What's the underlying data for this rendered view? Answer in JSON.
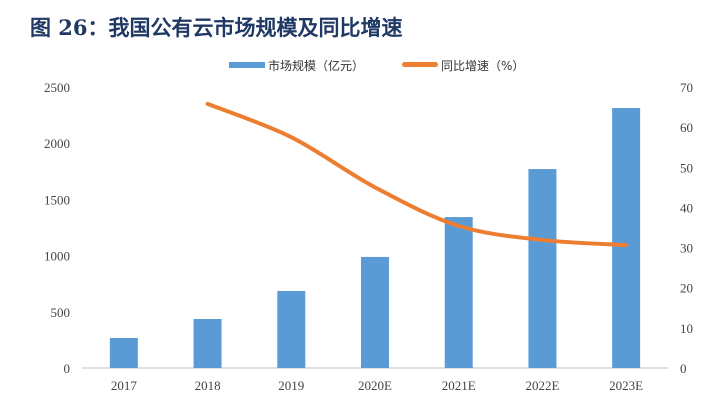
{
  "title": "图 26：我国公有云市场规模及同比增速",
  "chart_data": {
    "type": "bar+line",
    "title": "图 26：我国公有云市场规模及同比增速",
    "categories": [
      "2017",
      "2018",
      "2019",
      "2020E",
      "2021E",
      "2022E",
      "2023E"
    ],
    "series": [
      {
        "name": "市场规模（亿元）",
        "type": "bar",
        "axis": "left",
        "color": "#5b9bd5",
        "values": [
          267,
          436,
          685,
          988,
          1343,
          1770,
          2313
        ]
      },
      {
        "name": "同比增速（%）",
        "type": "line",
        "axis": "right",
        "color": "#ed7d31",
        "values": [
          null,
          65.8,
          57.5,
          45.0,
          35.4,
          31.9,
          30.6
        ]
      }
    ],
    "ylim_left": [
      0,
      2500
    ],
    "yticks_left": [
      "0",
      "500",
      "1000",
      "1500",
      "2000",
      "2500"
    ],
    "ylim_right": [
      0,
      70
    ],
    "yticks_right": [
      "0",
      "10",
      "20",
      "30",
      "40",
      "50",
      "60",
      "70"
    ],
    "grid": false,
    "legend": "top"
  }
}
